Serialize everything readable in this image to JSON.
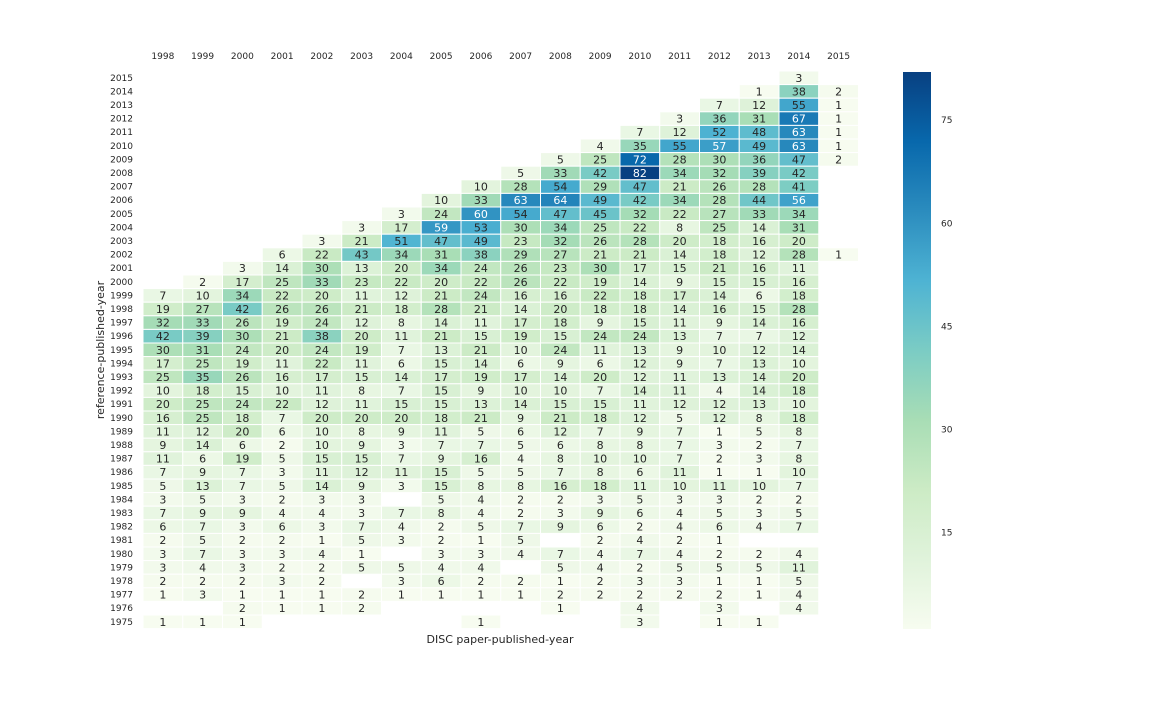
{
  "chart_data": {
    "type": "heatmap",
    "xlabel": "DISC paper-published-year",
    "ylabel": "reference-published-year",
    "x_categories": [
      "1998",
      "1999",
      "2000",
      "2001",
      "2002",
      "2003",
      "2004",
      "2005",
      "2006",
      "2007",
      "2008",
      "2009",
      "2010",
      "2011",
      "2012",
      "2013",
      "2014",
      "2015"
    ],
    "y_categories": [
      "2015",
      "2014",
      "2013",
      "2012",
      "2011",
      "2010",
      "2009",
      "2008",
      "2007",
      "2006",
      "2005",
      "2004",
      "2003",
      "2002",
      "2001",
      "2000",
      "1999",
      "1998",
      "1997",
      "1996",
      "1995",
      "1994",
      "1993",
      "1992",
      "1991",
      "1990",
      "1989",
      "1988",
      "1987",
      "1986",
      "1985",
      "1984",
      "1983",
      "1982",
      "1981",
      "1980",
      "1979",
      "1978",
      "1977",
      "1976",
      "1975"
    ],
    "values": [
      [
        null,
        null,
        null,
        null,
        null,
        null,
        null,
        null,
        null,
        null,
        null,
        null,
        null,
        null,
        null,
        null,
        3,
        null
      ],
      [
        null,
        null,
        null,
        null,
        null,
        null,
        null,
        null,
        null,
        null,
        null,
        null,
        null,
        null,
        null,
        1,
        38,
        2
      ],
      [
        null,
        null,
        null,
        null,
        null,
        null,
        null,
        null,
        null,
        null,
        null,
        null,
        null,
        null,
        7,
        12,
        55,
        1
      ],
      [
        null,
        null,
        null,
        null,
        null,
        null,
        null,
        null,
        null,
        null,
        null,
        null,
        null,
        3,
        36,
        31,
        67,
        1
      ],
      [
        null,
        null,
        null,
        null,
        null,
        null,
        null,
        null,
        null,
        null,
        null,
        null,
        7,
        12,
        52,
        48,
        63,
        1
      ],
      [
        null,
        null,
        null,
        null,
        null,
        null,
        null,
        null,
        null,
        null,
        null,
        4,
        35,
        55,
        57,
        49,
        63,
        1
      ],
      [
        null,
        null,
        null,
        null,
        null,
        null,
        null,
        null,
        null,
        null,
        5,
        25,
        72,
        28,
        30,
        36,
        47,
        2
      ],
      [
        null,
        null,
        null,
        null,
        null,
        null,
        null,
        null,
        null,
        5,
        33,
        42,
        82,
        34,
        32,
        39,
        42,
        null
      ],
      [
        null,
        null,
        null,
        null,
        null,
        null,
        null,
        null,
        10,
        28,
        54,
        29,
        47,
        21,
        26,
        28,
        41,
        null
      ],
      [
        null,
        null,
        null,
        null,
        null,
        null,
        null,
        10,
        33,
        63,
        64,
        49,
        42,
        34,
        28,
        44,
        56,
        null
      ],
      [
        null,
        null,
        null,
        null,
        null,
        null,
        3,
        24,
        60,
        54,
        47,
        45,
        32,
        22,
        27,
        33,
        34,
        null
      ],
      [
        null,
        null,
        null,
        null,
        null,
        3,
        17,
        59,
        53,
        30,
        34,
        25,
        22,
        8,
        25,
        14,
        31,
        null
      ],
      [
        null,
        null,
        null,
        null,
        3,
        21,
        51,
        47,
        49,
        23,
        32,
        26,
        28,
        20,
        18,
        16,
        20,
        null
      ],
      [
        null,
        null,
        null,
        6,
        22,
        43,
        34,
        31,
        38,
        29,
        27,
        21,
        21,
        14,
        18,
        12,
        28,
        1
      ],
      [
        null,
        null,
        3,
        14,
        30,
        13,
        20,
        34,
        24,
        26,
        23,
        30,
        17,
        15,
        21,
        16,
        11,
        null
      ],
      [
        null,
        2,
        17,
        25,
        33,
        23,
        22,
        20,
        22,
        26,
        22,
        19,
        14,
        9,
        15,
        15,
        16,
        null
      ],
      [
        7,
        10,
        34,
        22,
        20,
        11,
        12,
        21,
        24,
        16,
        16,
        22,
        18,
        17,
        14,
        6,
        18,
        null
      ],
      [
        19,
        27,
        42,
        26,
        26,
        21,
        18,
        28,
        21,
        14,
        20,
        18,
        18,
        14,
        16,
        15,
        28,
        null
      ],
      [
        32,
        33,
        26,
        19,
        24,
        12,
        8,
        14,
        11,
        17,
        18,
        9,
        15,
        11,
        9,
        14,
        16,
        null
      ],
      [
        42,
        39,
        30,
        21,
        38,
        20,
        11,
        21,
        15,
        19,
        15,
        24,
        24,
        13,
        7,
        7,
        12,
        null
      ],
      [
        30,
        31,
        24,
        20,
        24,
        19,
        7,
        13,
        21,
        10,
        24,
        11,
        13,
        9,
        10,
        12,
        14,
        null
      ],
      [
        17,
        25,
        19,
        11,
        22,
        11,
        6,
        15,
        14,
        6,
        9,
        6,
        12,
        9,
        7,
        13,
        10,
        null
      ],
      [
        25,
        35,
        26,
        16,
        17,
        15,
        14,
        17,
        19,
        17,
        14,
        20,
        12,
        11,
        13,
        14,
        20,
        null
      ],
      [
        10,
        18,
        15,
        10,
        11,
        8,
        7,
        15,
        9,
        10,
        10,
        7,
        14,
        11,
        4,
        14,
        18,
        null
      ],
      [
        20,
        25,
        24,
        22,
        12,
        11,
        15,
        15,
        13,
        14,
        15,
        15,
        11,
        12,
        12,
        13,
        10,
        null
      ],
      [
        16,
        25,
        18,
        7,
        20,
        20,
        20,
        18,
        21,
        9,
        21,
        18,
        12,
        5,
        12,
        8,
        18,
        null
      ],
      [
        11,
        12,
        20,
        6,
        10,
        8,
        9,
        11,
        5,
        6,
        12,
        7,
        9,
        7,
        1,
        5,
        8,
        null
      ],
      [
        9,
        14,
        6,
        2,
        10,
        9,
        3,
        7,
        7,
        5,
        6,
        8,
        8,
        7,
        3,
        2,
        7,
        null
      ],
      [
        11,
        6,
        19,
        5,
        15,
        15,
        7,
        9,
        16,
        4,
        8,
        10,
        10,
        7,
        2,
        3,
        8,
        null
      ],
      [
        7,
        9,
        7,
        3,
        11,
        12,
        11,
        15,
        5,
        5,
        7,
        8,
        6,
        11,
        1,
        1,
        10,
        null
      ],
      [
        5,
        13,
        7,
        5,
        14,
        9,
        3,
        15,
        8,
        8,
        16,
        18,
        11,
        10,
        11,
        10,
        7,
        null
      ],
      [
        3,
        5,
        3,
        2,
        3,
        3,
        null,
        5,
        4,
        2,
        2,
        3,
        5,
        3,
        3,
        2,
        2,
        null
      ],
      [
        7,
        9,
        9,
        4,
        4,
        3,
        7,
        8,
        4,
        2,
        3,
        9,
        6,
        4,
        5,
        3,
        5,
        null
      ],
      [
        6,
        7,
        3,
        6,
        3,
        7,
        4,
        2,
        5,
        7,
        9,
        6,
        2,
        4,
        6,
        4,
        7,
        null
      ],
      [
        2,
        5,
        2,
        2,
        1,
        5,
        3,
        2,
        1,
        5,
        null,
        2,
        4,
        2,
        1,
        null,
        null,
        null
      ],
      [
        3,
        7,
        3,
        3,
        4,
        1,
        null,
        3,
        3,
        4,
        7,
        4,
        7,
        4,
        2,
        2,
        4,
        null
      ],
      [
        3,
        4,
        3,
        2,
        2,
        5,
        5,
        4,
        4,
        null,
        5,
        4,
        2,
        5,
        5,
        5,
        11,
        null
      ],
      [
        2,
        2,
        2,
        3,
        2,
        null,
        3,
        6,
        2,
        2,
        1,
        2,
        3,
        3,
        1,
        1,
        5,
        null
      ],
      [
        1,
        3,
        1,
        1,
        1,
        2,
        1,
        1,
        1,
        1,
        2,
        2,
        2,
        2,
        2,
        1,
        4,
        null
      ],
      [
        null,
        null,
        2,
        1,
        1,
        2,
        null,
        null,
        null,
        null,
        1,
        null,
        4,
        null,
        3,
        null,
        4,
        null
      ],
      [
        1,
        1,
        1,
        null,
        null,
        null,
        null,
        null,
        1,
        null,
        null,
        null,
        3,
        null,
        1,
        1,
        null,
        null
      ]
    ],
    "vmin": 1,
    "vmax": 82,
    "colormap": [
      "#f7fcf0",
      "#e0f3db",
      "#ccebc5",
      "#a8ddb5",
      "#7bccc4",
      "#4eb3d3",
      "#2b8cbe",
      "#0868ac",
      "#084081"
    ],
    "colorbar_ticks": [
      15,
      30,
      45,
      60,
      75
    ],
    "x_ticks_position": "top",
    "grid": false
  }
}
